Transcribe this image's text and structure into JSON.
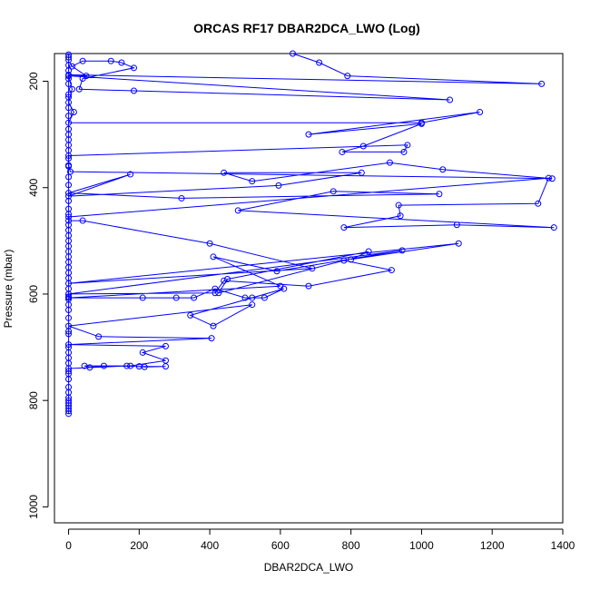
{
  "chart_data": {
    "type": "line",
    "title": "ORCAS RF17 DBAR2DCA_LWO (Log)",
    "xlabel": "DBAR2DCA_LWO",
    "ylabel": "Pressure (mbar)",
    "xlim": [
      -40,
      1400
    ],
    "ylim": [
      1030,
      148
    ],
    "y_inverted": true,
    "x_ticks": [
      "0",
      "200",
      "400",
      "600",
      "800",
      "1000",
      "1200",
      "1400"
    ],
    "y_ticks": [
      "200",
      "400",
      "600",
      "800",
      "1000"
    ],
    "grid": false,
    "legend": "none",
    "color": "#0000ff",
    "marker": "open-circle",
    "series": [
      {
        "points": [
          [
            635,
            148
          ],
          [
            710,
            165
          ],
          [
            790,
            190
          ],
          [
            1340,
            205
          ],
          [
            0,
            188
          ],
          [
            50,
            190
          ],
          [
            10,
            172
          ],
          [
            40,
            162
          ],
          [
            120,
            162
          ],
          [
            150,
            165
          ],
          [
            185,
            175
          ],
          [
            40,
            195
          ],
          [
            30,
            215
          ],
          [
            185,
            218
          ],
          [
            1080,
            235
          ],
          [
            0,
            190
          ],
          [
            10,
            215
          ],
          [
            0,
            240
          ],
          [
            15,
            258
          ],
          [
            0,
            278
          ],
          [
            1000,
            278
          ],
          [
            1165,
            258
          ],
          [
            680,
            300
          ],
          [
            1000,
            280
          ],
          [
            835,
            322
          ],
          [
            775,
            333
          ],
          [
            950,
            333
          ],
          [
            960,
            320
          ],
          [
            0,
            340
          ],
          [
            0,
            358
          ],
          [
            5,
            370
          ],
          [
            1370,
            383
          ],
          [
            1060,
            366
          ],
          [
            910,
            353
          ],
          [
            520,
            388
          ],
          [
            440,
            372
          ],
          [
            830,
            372
          ],
          [
            595,
            396
          ],
          [
            0,
            416
          ],
          [
            175,
            375
          ],
          [
            0,
            410
          ],
          [
            320,
            420
          ],
          [
            1050,
            412
          ],
          [
            750,
            407
          ],
          [
            480,
            443
          ],
          [
            1375,
            475
          ],
          [
            1100,
            470
          ],
          [
            780,
            475
          ],
          [
            940,
            453
          ],
          [
            935,
            433
          ],
          [
            1330,
            430
          ],
          [
            1360,
            382
          ],
          [
            0,
            455
          ],
          [
            0,
            462
          ],
          [
            40,
            462
          ],
          [
            400,
            505
          ],
          [
            690,
            552
          ],
          [
            0,
            580
          ],
          [
            1105,
            505
          ],
          [
            800,
            535
          ],
          [
            850,
            520
          ],
          [
            450,
            572
          ],
          [
            425,
            598
          ],
          [
            780,
            537
          ],
          [
            915,
            555
          ],
          [
            680,
            585
          ],
          [
            440,
            575
          ],
          [
            415,
            598
          ],
          [
            0,
            600
          ],
          [
            945,
            518
          ],
          [
            590,
            557
          ],
          [
            410,
            530
          ],
          [
            600,
            585
          ],
          [
            0,
            607
          ],
          [
            210,
            607
          ],
          [
            305,
            607
          ],
          [
            355,
            607
          ],
          [
            415,
            590
          ],
          [
            500,
            607
          ],
          [
            520,
            607
          ],
          [
            555,
            607
          ],
          [
            610,
            590
          ],
          [
            345,
            640
          ],
          [
            410,
            660
          ],
          [
            520,
            620
          ],
          [
            0,
            660
          ],
          [
            85,
            680
          ],
          [
            405,
            683
          ],
          [
            0,
            695
          ],
          [
            275,
            698
          ],
          [
            210,
            710
          ],
          [
            275,
            725
          ],
          [
            175,
            735
          ],
          [
            45,
            735
          ],
          [
            60,
            738
          ],
          [
            100,
            735
          ],
          [
            200,
            736
          ],
          [
            275,
            736
          ],
          [
            215,
            737
          ],
          [
            165,
            735
          ],
          [
            0,
            740
          ]
        ]
      }
    ],
    "baseline_points_x": 0,
    "baseline_points_y": [
      150,
      155,
      160,
      170,
      180,
      195,
      205,
      225,
      230,
      250,
      265,
      290,
      300,
      310,
      320,
      330,
      345,
      360,
      380,
      395,
      425,
      440,
      450,
      470,
      480,
      490,
      500,
      510,
      520,
      530,
      540,
      550,
      560,
      570,
      590,
      600,
      605,
      610,
      620,
      630,
      645,
      670,
      675,
      700,
      710,
      720,
      730,
      745,
      750,
      760,
      775,
      785,
      795,
      800,
      805,
      810,
      815,
      820,
      825
    ]
  }
}
